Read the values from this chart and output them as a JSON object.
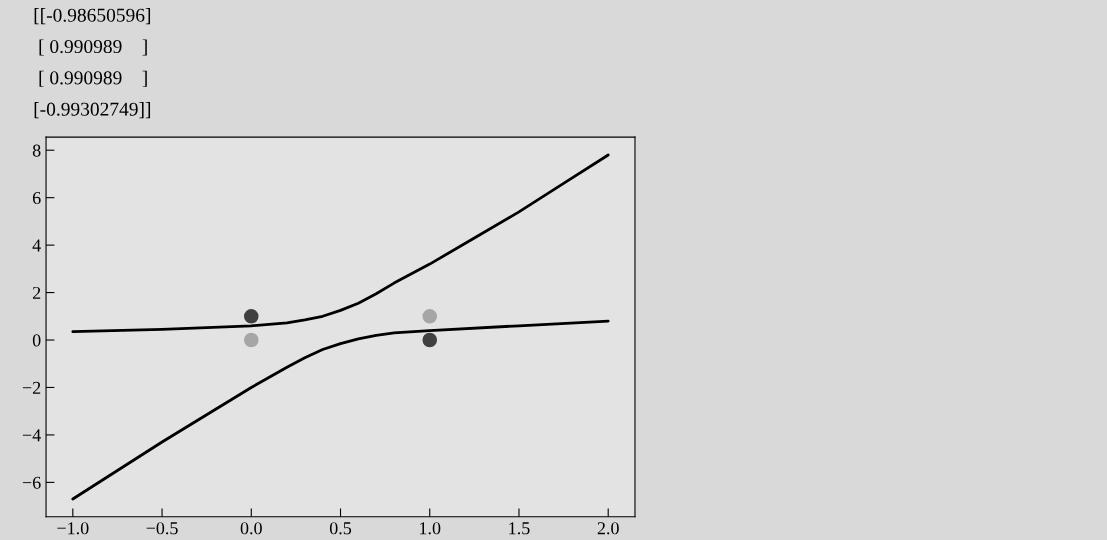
{
  "chart_data": {
    "type": "scatter",
    "annotations": [
      "[[-0.98650596]",
      " [ 0.990989    ]",
      " [ 0.990989    ]",
      "[-0.99302749]]"
    ],
    "series": [
      {
        "type": "line",
        "color": "#000000",
        "x": [
          -1,
          -0.5,
          0,
          0.2,
          0.3,
          0.4,
          0.5,
          0.6,
          0.7,
          0.8,
          0.9,
          1.0,
          1.25,
          1.5,
          1.75,
          2.0
        ],
        "values": [
          0.35,
          0.45,
          0.6,
          0.72,
          0.85,
          1.0,
          1.25,
          1.55,
          1.95,
          2.4,
          2.8,
          3.2,
          4.3,
          5.4,
          6.6,
          7.8
        ]
      },
      {
        "type": "line",
        "color": "#000000",
        "x": [
          -1,
          -0.5,
          0,
          0.2,
          0.3,
          0.4,
          0.5,
          0.6,
          0.7,
          0.8,
          1.0,
          1.5,
          2.0
        ],
        "values": [
          -6.7,
          -4.3,
          -2.0,
          -1.15,
          -0.75,
          -0.4,
          -0.15,
          0.05,
          0.2,
          0.3,
          0.4,
          0.6,
          0.8
        ]
      },
      {
        "color": "#404040",
        "x": [
          0,
          1
        ],
        "values": [
          1,
          0
        ],
        "marker": "circle"
      },
      {
        "color": "#a6a6a6",
        "x": [
          0,
          1
        ],
        "values": [
          0,
          1
        ],
        "marker": "circle"
      }
    ],
    "xlim": [
      -1.15,
      2.15
    ],
    "ylim": [
      -7.45,
      8.55
    ],
    "xticks": [
      {
        "value": -1.0,
        "label": "−1.0"
      },
      {
        "value": -0.5,
        "label": "−0.5"
      },
      {
        "value": 0.0,
        "label": "0.0"
      },
      {
        "value": 0.5,
        "label": "0.5"
      },
      {
        "value": 1.0,
        "label": "1.0"
      },
      {
        "value": 1.5,
        "label": "1.5"
      },
      {
        "value": 2.0,
        "label": "2.0"
      }
    ],
    "yticks": [
      {
        "value": -6,
        "label": "−6"
      },
      {
        "value": -4,
        "label": "−4"
      },
      {
        "value": -2,
        "label": "−2"
      },
      0,
      2,
      4,
      6,
      8
    ]
  }
}
